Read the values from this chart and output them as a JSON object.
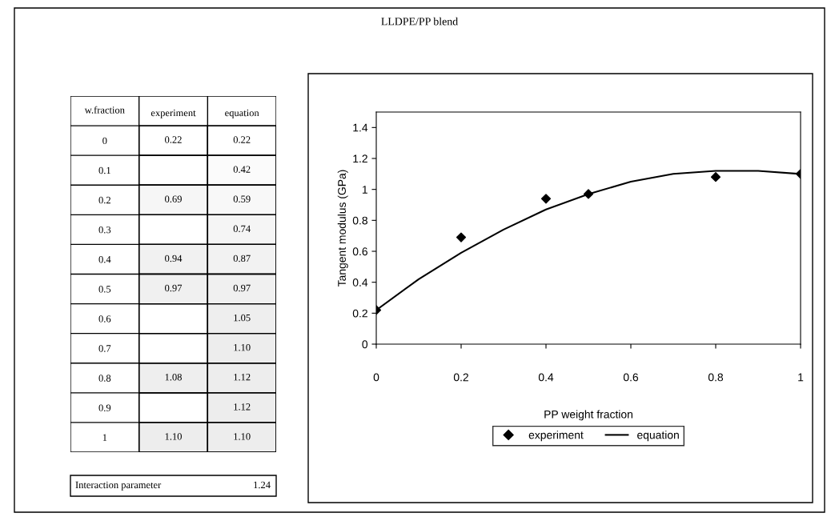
{
  "chart_data": [
    {
      "type": "heatmap",
      "ylabel": "w.fraction",
      "categories": [
        "experiment",
        "equation"
      ],
      "y_categories": [
        "0",
        "0.1",
        "0.2",
        "0.3",
        "0.4",
        "0.5",
        "0.6",
        "0.7",
        "0.8",
        "0.9",
        "1"
      ],
      "cells": [
        [
          0.22,
          0.22
        ],
        [
          null,
          0.42
        ],
        [
          0.69,
          0.59
        ],
        [
          null,
          0.74
        ],
        [
          0.94,
          0.87
        ],
        [
          0.97,
          0.97
        ],
        [
          null,
          1.05
        ],
        [
          null,
          1.1
        ],
        [
          1.08,
          1.12
        ],
        [
          null,
          1.12
        ],
        [
          1.1,
          1.1
        ]
      ],
      "cell_labels": [
        [
          "0.22",
          "0.22"
        ],
        [
          null,
          "0.42"
        ],
        [
          "0.69",
          "0.59"
        ],
        [
          null,
          "0.74"
        ],
        [
          "0.94",
          "0.87"
        ],
        [
          "0.97",
          "0.97"
        ],
        [
          null,
          "1.05"
        ],
        [
          null,
          "1.10"
        ],
        [
          "1.08",
          "1.12"
        ],
        [
          null,
          "1.12"
        ],
        [
          "1.10",
          "1.10"
        ]
      ],
      "annotations": [
        "Interaction parameter",
        "1.24"
      ]
    },
    {
      "type": "scatter",
      "title": "LLDPE/PP blend",
      "xlabel": "PP weight fraction",
      "ylabel": "Tangent modulus (GPa)",
      "series": [
        {
          "name": "experiment",
          "type": "scatter",
          "color": "#000000",
          "marker": "diamond",
          "x": [
            0,
            0.2,
            0.4,
            0.5,
            0.8,
            1
          ],
          "values": [
            0.22,
            0.69,
            0.94,
            0.97,
            1.08,
            1.1
          ]
        },
        {
          "name": "equation",
          "type": "line",
          "color": "#000000",
          "line_style": "solid",
          "x": [
            0,
            0.1,
            0.2,
            0.3,
            0.4,
            0.5,
            0.6,
            0.7,
            0.8,
            0.9,
            1
          ],
          "values": [
            0.22,
            0.42,
            0.59,
            0.74,
            0.87,
            0.97,
            1.05,
            1.1,
            1.12,
            1.12,
            1.1
          ]
        }
      ],
      "xlim": [
        0,
        1
      ],
      "xticks": [
        0,
        0.2,
        0.4,
        0.6,
        0.8,
        1
      ],
      "ylim": [
        0,
        1.5
      ],
      "yticks": [
        0,
        0.2,
        0.4,
        0.6,
        0.8,
        1,
        1.2,
        1.4
      ],
      "grid": false,
      "legend": "bottom"
    }
  ]
}
